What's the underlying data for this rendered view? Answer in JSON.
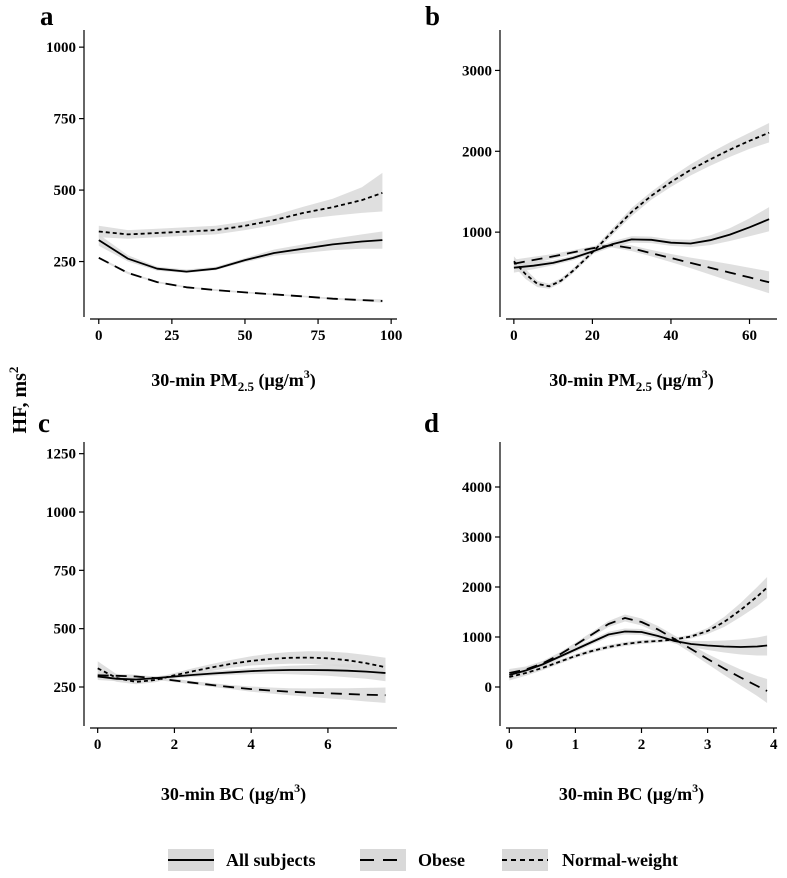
{
  "y_axis_title": "HF, ms",
  "y_axis_title_sup": "2",
  "legend": [
    {
      "label": "All subjects",
      "style": "solid"
    },
    {
      "label": "Obese",
      "style": "longdash"
    },
    {
      "label": "Normal-weight",
      "style": "dotted"
    }
  ],
  "colors": {
    "line": "#000000",
    "band": "#d9d9d9"
  },
  "chart_data": [
    {
      "type": "line",
      "panel": "a",
      "xlabel": {
        "pre": "30-min PM",
        "sub": "2.5",
        "mid": " (μg/m",
        "sup": "3",
        "post": ")"
      },
      "ylabel": "HF, ms2",
      "xlim": [
        -3,
        102
      ],
      "ylim": [
        70,
        1060
      ],
      "xticks": [
        0,
        25,
        50,
        75,
        100
      ],
      "yticks": [
        250,
        500,
        750,
        1000
      ],
      "series": [
        {
          "name": "All subjects",
          "style": "solid",
          "x": [
            0,
            10,
            20,
            30,
            40,
            50,
            60,
            70,
            80,
            90,
            97
          ],
          "y": [
            325,
            260,
            225,
            215,
            225,
            255,
            280,
            295,
            310,
            320,
            325
          ],
          "lo": [
            305,
            250,
            218,
            210,
            220,
            248,
            270,
            280,
            290,
            295,
            295
          ],
          "hi": [
            345,
            272,
            232,
            222,
            232,
            262,
            292,
            310,
            330,
            345,
            355
          ]
        },
        {
          "name": "Obese",
          "style": "longdash",
          "x": [
            0,
            10,
            20,
            30,
            40,
            50,
            60,
            70,
            80,
            90,
            97
          ],
          "y": [
            263,
            210,
            178,
            160,
            150,
            142,
            135,
            128,
            120,
            115,
            112
          ],
          "lo": [
            259,
            206,
            175,
            157,
            147,
            139,
            132,
            125,
            117,
            111,
            106
          ],
          "hi": [
            267,
            214,
            181,
            163,
            153,
            145,
            138,
            131,
            123,
            119,
            118
          ]
        },
        {
          "name": "Normal-weight",
          "style": "dotted",
          "x": [
            0,
            10,
            20,
            30,
            40,
            50,
            60,
            70,
            80,
            90,
            97
          ],
          "y": [
            355,
            345,
            350,
            355,
            360,
            375,
            395,
            420,
            440,
            465,
            490
          ],
          "lo": [
            335,
            330,
            335,
            340,
            345,
            360,
            378,
            398,
            410,
            420,
            425
          ],
          "hi": [
            375,
            360,
            365,
            370,
            375,
            390,
            412,
            442,
            470,
            510,
            560
          ]
        }
      ]
    },
    {
      "type": "line",
      "panel": "b",
      "xlabel": {
        "pre": "30-min PM",
        "sub": "2.5",
        "mid": " (μg/m",
        "sup": "3",
        "post": ")"
      },
      "ylabel": "HF, ms2",
      "xlim": [
        -2,
        67
      ],
      "ylim": [
        0,
        3500
      ],
      "xticks": [
        0,
        20,
        40,
        60
      ],
      "yticks": [
        1000,
        2000,
        3000
      ],
      "series": [
        {
          "name": "All subjects",
          "style": "solid",
          "x": [
            0,
            5,
            10,
            15,
            20,
            25,
            30,
            35,
            40,
            45,
            50,
            55,
            60,
            65
          ],
          "y": [
            560,
            585,
            620,
            680,
            760,
            850,
            910,
            905,
            870,
            860,
            900,
            970,
            1060,
            1160
          ],
          "lo": [
            500,
            540,
            590,
            650,
            730,
            815,
            870,
            865,
            830,
            815,
            840,
            890,
            950,
            1010
          ],
          "hi": [
            620,
            630,
            650,
            710,
            790,
            885,
            950,
            945,
            910,
            905,
            960,
            1050,
            1170,
            1310
          ]
        },
        {
          "name": "Obese",
          "style": "longdash",
          "x": [
            0,
            5,
            10,
            15,
            20,
            25,
            30,
            35,
            40,
            45,
            50,
            55,
            60,
            65
          ],
          "y": [
            610,
            655,
            700,
            750,
            800,
            840,
            800,
            740,
            680,
            620,
            560,
            500,
            440,
            380
          ],
          "lo": [
            560,
            615,
            670,
            725,
            775,
            810,
            765,
            700,
            630,
            555,
            475,
            395,
            320,
            245
          ],
          "hi": [
            660,
            695,
            730,
            775,
            825,
            870,
            835,
            780,
            730,
            685,
            645,
            605,
            560,
            515
          ]
        },
        {
          "name": "Normal-weight",
          "style": "dotted",
          "x": [
            0,
            3,
            6,
            9,
            12,
            15,
            20,
            25,
            30,
            35,
            40,
            45,
            50,
            55,
            60,
            65
          ],
          "y": [
            640,
            480,
            360,
            330,
            400,
            520,
            750,
            1000,
            1250,
            1450,
            1620,
            1770,
            1900,
            2020,
            2130,
            2230
          ],
          "lo": [
            580,
            420,
            320,
            300,
            370,
            490,
            720,
            960,
            1200,
            1400,
            1560,
            1700,
            1820,
            1930,
            2030,
            2110
          ],
          "hi": [
            700,
            540,
            400,
            360,
            430,
            550,
            780,
            1040,
            1300,
            1500,
            1680,
            1840,
            1980,
            2110,
            2230,
            2350
          ]
        }
      ]
    },
    {
      "type": "line",
      "panel": "c",
      "xlabel": {
        "pre": "30-min BC (μg/m",
        "sup": "3",
        "post": ")"
      },
      "ylabel": "HF, ms2",
      "xlim": [
        -0.2,
        7.8
      ],
      "ylim": [
        100,
        1300
      ],
      "xticks": [
        0,
        2,
        4,
        6
      ],
      "yticks": [
        250,
        500,
        750,
        1000,
        1250
      ],
      "series": [
        {
          "name": "All subjects",
          "style": "solid",
          "x": [
            0,
            0.5,
            1,
            1.5,
            2,
            2.5,
            3,
            3.5,
            4,
            4.5,
            5,
            5.5,
            6,
            6.5,
            7,
            7.5
          ],
          "y": [
            295,
            285,
            282,
            288,
            295,
            302,
            308,
            313,
            318,
            321,
            323,
            323,
            322,
            320,
            316,
            310
          ],
          "lo": [
            280,
            275,
            274,
            280,
            287,
            293,
            298,
            302,
            305,
            306,
            305,
            302,
            298,
            292,
            285,
            275
          ],
          "hi": [
            310,
            295,
            290,
            296,
            303,
            311,
            318,
            324,
            331,
            336,
            341,
            344,
            346,
            348,
            347,
            345
          ]
        },
        {
          "name": "Obese",
          "style": "longdash",
          "x": [
            0,
            0.5,
            1,
            1.5,
            2,
            2.5,
            3,
            3.5,
            4,
            4.5,
            5,
            5.5,
            6,
            6.5,
            7,
            7.5
          ],
          "y": [
            300,
            298,
            295,
            288,
            278,
            268,
            258,
            249,
            241,
            235,
            230,
            226,
            223,
            220,
            217,
            215
          ],
          "lo": [
            290,
            290,
            288,
            281,
            271,
            261,
            250,
            240,
            230,
            222,
            215,
            208,
            201,
            195,
            188,
            182
          ],
          "hi": [
            310,
            306,
            302,
            295,
            285,
            275,
            266,
            258,
            252,
            248,
            245,
            244,
            245,
            245,
            246,
            248
          ]
        },
        {
          "name": "Normal-weight",
          "style": "dotted",
          "x": [
            0,
            0.5,
            1,
            1.5,
            2,
            2.5,
            3,
            3.5,
            4,
            4.5,
            5,
            5.5,
            6,
            6.5,
            7,
            7.5
          ],
          "y": [
            330,
            288,
            272,
            280,
            300,
            318,
            335,
            350,
            362,
            370,
            375,
            376,
            373,
            365,
            352,
            335
          ],
          "lo": [
            300,
            272,
            262,
            270,
            290,
            305,
            320,
            333,
            342,
            347,
            350,
            349,
            344,
            333,
            317,
            295
          ],
          "hi": [
            360,
            304,
            282,
            290,
            310,
            331,
            350,
            367,
            382,
            393,
            400,
            403,
            402,
            397,
            387,
            375
          ]
        }
      ]
    },
    {
      "type": "line",
      "panel": "d",
      "xlabel": {
        "pre": "30-min BC (μg/m",
        "sup": "3",
        "post": ")"
      },
      "ylabel": "HF, ms2",
      "xlim": [
        -0.05,
        4.05
      ],
      "ylim": [
        -700,
        4900
      ],
      "xticks": [
        0,
        1,
        2,
        3,
        4
      ],
      "yticks": [
        0,
        1000,
        2000,
        3000,
        4000
      ],
      "series": [
        {
          "name": "All subjects",
          "style": "solid",
          "x": [
            0,
            0.25,
            0.5,
            0.75,
            1,
            1.25,
            1.5,
            1.75,
            2,
            2.25,
            2.5,
            2.75,
            3,
            3.25,
            3.5,
            3.75,
            3.9
          ],
          "y": [
            240,
            330,
            450,
            600,
            750,
            900,
            1050,
            1110,
            1100,
            1020,
            920,
            860,
            830,
            810,
            800,
            810,
            830
          ],
          "lo": [
            150,
            270,
            400,
            555,
            700,
            850,
            995,
            1050,
            1040,
            965,
            870,
            800,
            740,
            690,
            650,
            630,
            630
          ],
          "hi": [
            330,
            390,
            500,
            645,
            800,
            950,
            1105,
            1170,
            1160,
            1075,
            970,
            920,
            920,
            930,
            950,
            990,
            1030
          ]
        },
        {
          "name": "Obese",
          "style": "longdash",
          "x": [
            0,
            0.25,
            0.5,
            0.75,
            1,
            1.25,
            1.5,
            1.75,
            2,
            2.25,
            2.5,
            2.75,
            3,
            3.25,
            3.5,
            3.75,
            3.9
          ],
          "y": [
            280,
            350,
            470,
            640,
            840,
            1050,
            1260,
            1380,
            1300,
            1150,
            960,
            760,
            560,
            370,
            190,
            20,
            -80
          ],
          "lo": [
            200,
            290,
            420,
            595,
            795,
            1000,
            1200,
            1310,
            1230,
            1080,
            890,
            680,
            460,
            240,
            30,
            -180,
            -320
          ],
          "hi": [
            360,
            410,
            520,
            685,
            885,
            1100,
            1320,
            1450,
            1370,
            1220,
            1030,
            840,
            660,
            500,
            350,
            220,
            160
          ]
        },
        {
          "name": "Normal-weight",
          "style": "dotted",
          "x": [
            0,
            0.25,
            0.5,
            0.75,
            1,
            1.25,
            1.5,
            1.75,
            2,
            2.25,
            2.5,
            2.75,
            3,
            3.25,
            3.5,
            3.75,
            3.9
          ],
          "y": [
            200,
            280,
            380,
            500,
            620,
            720,
            800,
            860,
            900,
            920,
            950,
            1010,
            1120,
            1300,
            1540,
            1810,
            1990
          ],
          "lo": [
            130,
            225,
            335,
            460,
            580,
            680,
            760,
            820,
            860,
            885,
            915,
            970,
            1060,
            1200,
            1400,
            1620,
            1780
          ],
          "hi": [
            270,
            335,
            425,
            540,
            660,
            760,
            840,
            900,
            940,
            955,
            985,
            1050,
            1180,
            1400,
            1680,
            2000,
            2200
          ]
        }
      ]
    }
  ]
}
